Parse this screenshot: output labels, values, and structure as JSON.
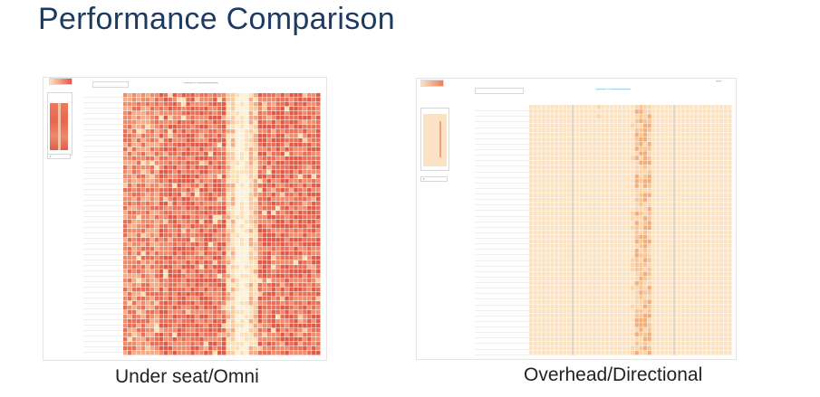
{
  "slide": {
    "title": "Performance Comparison"
  },
  "panels": [
    {
      "id": "left",
      "caption": "Under seat/Omni",
      "palette": [
        "#fdf0d8",
        "#fbe1b8",
        "#f8cba0",
        "#f4ad88",
        "#ef8c6c",
        "#e96f56",
        "#e05a47"
      ],
      "legend_colors": [
        "#fbe3c0",
        "#e0564a"
      ]
    },
    {
      "id": "right",
      "caption": "Overhead/Directional",
      "palette": [
        "#fbe3c4",
        "#f9d6ad",
        "#f7c596",
        "#f3ae7a"
      ],
      "legend_colors": [
        "#fbe3c4",
        "#ef7d56"
      ]
    }
  ]
}
